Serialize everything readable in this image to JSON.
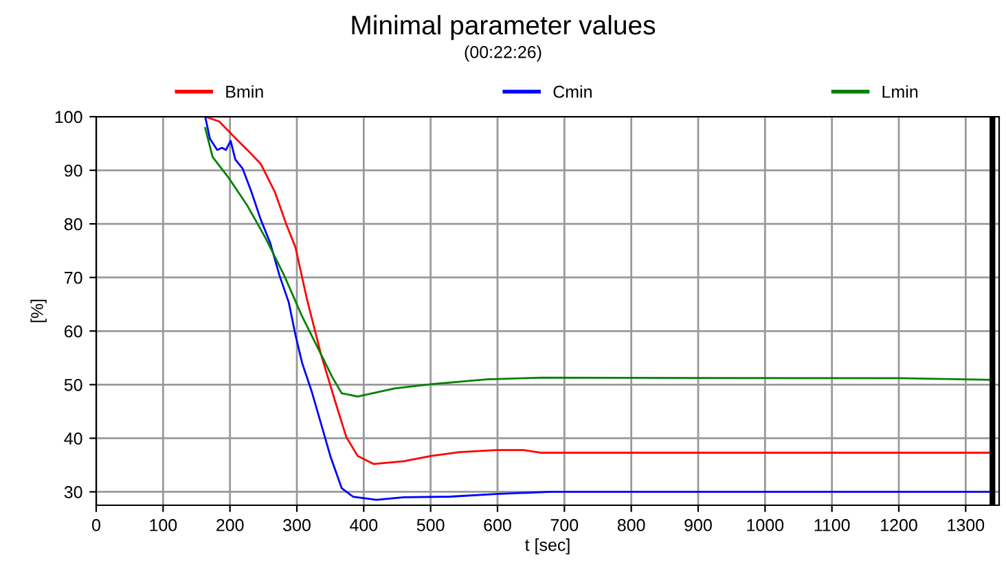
{
  "chart_data": {
    "type": "line",
    "title": "Minimal parameter values",
    "subtitle": "(00:22:26)",
    "xlabel": "t [sec]",
    "ylabel": "[%]",
    "xlim": [
      0,
      1350
    ],
    "ylim": [
      27.5,
      100
    ],
    "xticks": [
      0,
      100,
      200,
      300,
      400,
      500,
      600,
      700,
      800,
      900,
      1000,
      1100,
      1200,
      1300
    ],
    "yticks": [
      30,
      40,
      50,
      60,
      70,
      80,
      90,
      100
    ],
    "grid": true,
    "legend": "top",
    "marker": "none",
    "line_style": "solid",
    "ref_lines": [
      {
        "axis": "x",
        "value": 1340,
        "color": "#000000"
      }
    ],
    "series": [
      {
        "name": "Bmin",
        "color": "#ff0000",
        "x": [
          163,
          184,
          205,
          226,
          246,
          267,
          284,
          298,
          315,
          336,
          357,
          374,
          391,
          415,
          460,
          501,
          543,
          598,
          639,
          664,
          1340
        ],
        "values": [
          100,
          99.1,
          96.4,
          93.8,
          91.2,
          86,
          80,
          75.6,
          66,
          55.7,
          47,
          40.2,
          36.7,
          35.2,
          35.7,
          36.7,
          37.4,
          37.8,
          37.8,
          37.3,
          37.3
        ]
      },
      {
        "name": "Cmin",
        "color": "#0000ff",
        "x": [
          163,
          170,
          181,
          188,
          194,
          201,
          208,
          219,
          232,
          246,
          260,
          274,
          288,
          298,
          308,
          322,
          336,
          350,
          367,
          384,
          419,
          460,
          529,
          598,
          681,
          1340
        ],
        "values": [
          100,
          95.9,
          93.8,
          94.2,
          93.8,
          95.5,
          92,
          90.3,
          86,
          80.8,
          76.5,
          70.4,
          65.3,
          59.2,
          54,
          48.8,
          42.8,
          36.7,
          30.7,
          29.1,
          28.5,
          29,
          29.1,
          29.6,
          30,
          30
        ]
      },
      {
        "name": "Lmin",
        "color": "#008000",
        "x": [
          163,
          174,
          198,
          226,
          253,
          281,
          308,
          336,
          353,
          367,
          391,
          446,
          501,
          584,
          667,
          1200,
          1340
        ],
        "values": [
          97.9,
          92.5,
          88.6,
          83.4,
          77.4,
          70.4,
          62.7,
          55.7,
          51.4,
          48.4,
          47.8,
          49.3,
          50.1,
          51,
          51.3,
          51.2,
          50.9
        ]
      }
    ]
  }
}
